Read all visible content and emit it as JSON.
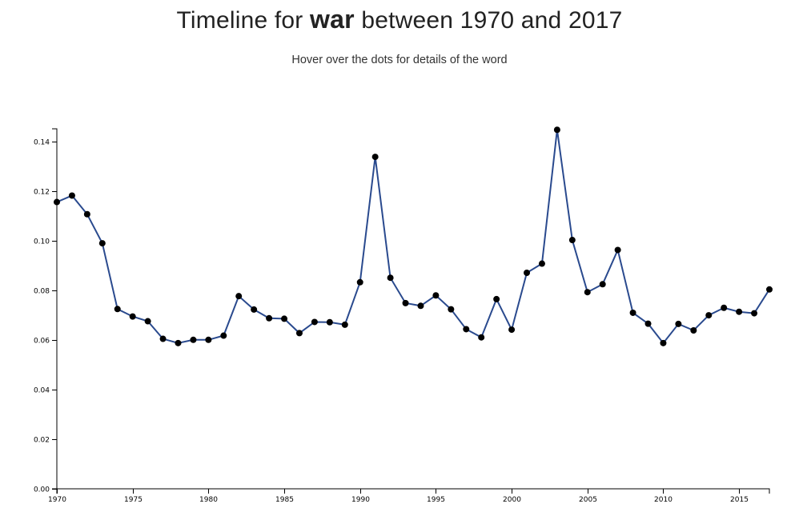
{
  "header": {
    "title_prefix": "Timeline for",
    "title_word": "war",
    "title_suffix": "between 1970 and 2017",
    "subtitle": "Hover over the dots for details of the word"
  },
  "colors": {
    "line": "#2a4a8e",
    "dot": "#000000",
    "axis": "#000000"
  },
  "chart_data": {
    "type": "line",
    "title": "Timeline for war between 1970 and 2017",
    "subtitle": "Hover over the dots for details of the word",
    "xlabel": "",
    "ylabel": "",
    "xlim": [
      1970,
      2017
    ],
    "ylim": [
      0,
      0.145
    ],
    "grid": false,
    "x_ticks": [
      1970,
      1975,
      1980,
      1985,
      1990,
      1995,
      2000,
      2005,
      2010,
      2015
    ],
    "x_tick_labels": [
      "1970",
      "1975",
      "1980",
      "1985",
      "1990",
      "1995",
      "2000",
      "2005",
      "2010",
      "2015"
    ],
    "y_ticks": [
      0,
      0.02,
      0.04,
      0.06,
      0.08,
      0.1,
      0.12,
      0.14
    ],
    "y_tick_labels": [
      "0.00",
      "0.02",
      "0.04",
      "0.06",
      "0.08",
      "0.10",
      "0.12",
      "0.14"
    ],
    "series": [
      {
        "x": [
          1970,
          1971,
          1972,
          1973,
          1974,
          1975,
          1976,
          1977,
          1978,
          1979,
          1980,
          1981,
          1982,
          1983,
          1984,
          1985,
          1986,
          1987,
          1988,
          1989,
          1990,
          1991,
          1992,
          1993,
          1994,
          1995,
          1996,
          1997,
          1998,
          1999,
          2000,
          2001,
          2002,
          2003,
          2004,
          2005,
          2006,
          2007,
          2008,
          2009,
          2010,
          2011,
          2012,
          2013,
          2014,
          2015,
          2016,
          2017
        ],
        "y": [
          0.1155,
          0.1181,
          0.1106,
          0.0989,
          0.0724,
          0.0694,
          0.0675,
          0.0604,
          0.0587,
          0.06,
          0.06,
          0.0617,
          0.0776,
          0.0722,
          0.0687,
          0.0685,
          0.0627,
          0.0672,
          0.0671,
          0.0661,
          0.0832,
          0.1337,
          0.085,
          0.0748,
          0.0737,
          0.0779,
          0.0723,
          0.0643,
          0.061,
          0.0764,
          0.0641,
          0.087,
          0.0907,
          0.1446,
          0.1002,
          0.0792,
          0.0824,
          0.0962,
          0.0709,
          0.0665,
          0.0587,
          0.0664,
          0.0638,
          0.0699,
          0.0729,
          0.0713,
          0.0707,
          0.0803
        ]
      }
    ]
  }
}
